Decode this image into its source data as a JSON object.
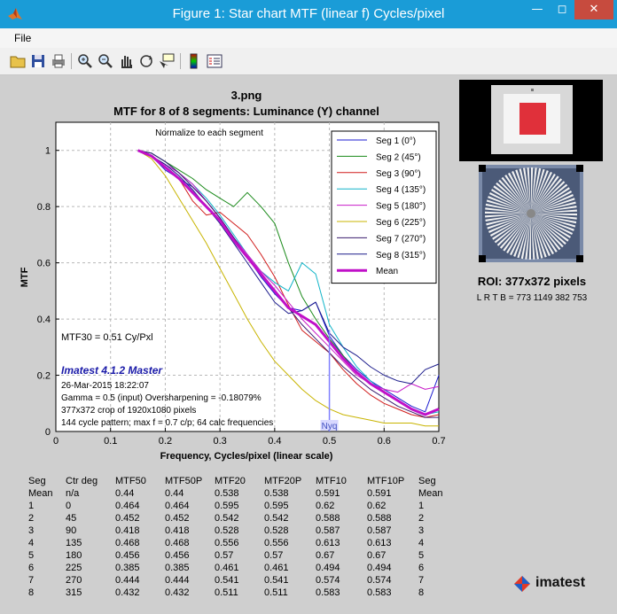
{
  "window": {
    "title": "Figure 1: Star chart  MTF (linear f)  Cycles/pixel"
  },
  "menu": {
    "file": "File"
  },
  "toolbar": {
    "buttons": [
      "open-icon",
      "save-icon",
      "print-icon",
      "zoom-in-icon",
      "zoom-out-icon",
      "pan-hand-icon",
      "rotate-3d-icon",
      "data-cursor-icon",
      "colorbar-icon",
      "legend-icon"
    ]
  },
  "chart_data": {
    "type": "line",
    "title": "3.png",
    "subtitle": "MTF for 8 of 8 segments:  Luminance (Y) channel",
    "xlabel": "Frequency, Cycles/pixel (linear scale)",
    "ylabel": "MTF",
    "xlim": [
      0,
      0.7
    ],
    "ylim": [
      0,
      1.1
    ],
    "xticks": [
      "0",
      "0.1",
      "0.2",
      "0.3",
      "0.4",
      "0.5",
      "0.6",
      "0.7"
    ],
    "yticks": [
      "0",
      "0.2",
      "0.4",
      "0.6",
      "0.8",
      "1"
    ],
    "grid": true,
    "legend_position": "top-right",
    "annotation_top": "Normalize to each segment",
    "nyquist": {
      "x": 0.5,
      "label": "Nyq"
    },
    "mtf30_label": "MTF30 = 0.51 Cy/Pxl",
    "info": {
      "product": "Imatest 4.1.2 Master",
      "lines": [
        "26-Mar-2015 18:22:07",
        "Gamma = 0.5 (input)  Oversharpening = -0.18079%",
        "377x372 crop of 1920x1080 pixels",
        "144 cycle pattern;  max f = 0.7 c/p;  64 calc frequencies"
      ]
    },
    "series": [
      {
        "name": "Seg 1 (0°)",
        "color": "#1c1cd0",
        "x": [
          0.15,
          0.175,
          0.2,
          0.225,
          0.25,
          0.275,
          0.3,
          0.325,
          0.35,
          0.375,
          0.4,
          0.425,
          0.45,
          0.475,
          0.5,
          0.525,
          0.55,
          0.575,
          0.6,
          0.625,
          0.65,
          0.675,
          0.7
        ],
        "y": [
          1.0,
          0.98,
          0.93,
          0.9,
          0.87,
          0.82,
          0.76,
          0.69,
          0.62,
          0.55,
          0.49,
          0.44,
          0.43,
          0.46,
          0.34,
          0.27,
          0.22,
          0.18,
          0.15,
          0.12,
          0.09,
          0.07,
          0.2
        ]
      },
      {
        "name": "Seg 2 (45°)",
        "color": "#1a8a1a",
        "x": [
          0.15,
          0.175,
          0.2,
          0.225,
          0.25,
          0.275,
          0.3,
          0.325,
          0.35,
          0.375,
          0.4,
          0.425,
          0.45,
          0.475,
          0.5,
          0.525,
          0.55,
          0.575,
          0.6,
          0.625,
          0.65,
          0.675,
          0.7
        ],
        "y": [
          1.0,
          0.99,
          0.96,
          0.93,
          0.9,
          0.86,
          0.83,
          0.8,
          0.85,
          0.8,
          0.74,
          0.6,
          0.48,
          0.4,
          0.33,
          0.27,
          0.21,
          0.17,
          0.14,
          0.11,
          0.08,
          0.06,
          0.08
        ]
      },
      {
        "name": "Seg 3 (90°)",
        "color": "#d01c1c",
        "x": [
          0.15,
          0.175,
          0.2,
          0.225,
          0.25,
          0.275,
          0.3,
          0.325,
          0.35,
          0.375,
          0.4,
          0.425,
          0.45,
          0.475,
          0.5,
          0.525,
          0.55,
          0.575,
          0.6,
          0.625,
          0.65,
          0.675,
          0.7
        ],
        "y": [
          1.0,
          0.98,
          0.94,
          0.9,
          0.82,
          0.77,
          0.78,
          0.74,
          0.7,
          0.63,
          0.55,
          0.45,
          0.36,
          0.32,
          0.28,
          0.22,
          0.17,
          0.13,
          0.1,
          0.08,
          0.06,
          0.05,
          0.06
        ]
      },
      {
        "name": "Seg 4 (135°)",
        "color": "#10b4c8",
        "x": [
          0.15,
          0.175,
          0.2,
          0.225,
          0.25,
          0.275,
          0.3,
          0.325,
          0.35,
          0.375,
          0.4,
          0.425,
          0.45,
          0.475,
          0.5,
          0.525,
          0.55,
          0.575,
          0.6,
          0.625,
          0.65,
          0.675,
          0.7
        ],
        "y": [
          1.0,
          0.99,
          0.96,
          0.92,
          0.88,
          0.83,
          0.77,
          0.7,
          0.63,
          0.57,
          0.53,
          0.5,
          0.6,
          0.56,
          0.38,
          0.3,
          0.23,
          0.18,
          0.14,
          0.11,
          0.08,
          0.06,
          0.07
        ]
      },
      {
        "name": "Seg 5 (180°)",
        "color": "#c81cc8",
        "x": [
          0.15,
          0.175,
          0.2,
          0.225,
          0.25,
          0.275,
          0.3,
          0.325,
          0.35,
          0.375,
          0.4,
          0.425,
          0.45,
          0.475,
          0.5,
          0.525,
          0.55,
          0.575,
          0.6,
          0.625,
          0.65,
          0.675,
          0.7
        ],
        "y": [
          1.0,
          0.98,
          0.95,
          0.92,
          0.88,
          0.82,
          0.76,
          0.69,
          0.63,
          0.57,
          0.52,
          0.46,
          0.4,
          0.35,
          0.3,
          0.25,
          0.2,
          0.17,
          0.15,
          0.14,
          0.17,
          0.15,
          0.16
        ]
      },
      {
        "name": "Seg 6 (225°)",
        "color": "#c8b400",
        "x": [
          0.15,
          0.175,
          0.2,
          0.225,
          0.25,
          0.275,
          0.3,
          0.325,
          0.35,
          0.375,
          0.4,
          0.425,
          0.45,
          0.475,
          0.5,
          0.525,
          0.55,
          0.575,
          0.6,
          0.625,
          0.65,
          0.675,
          0.7
        ],
        "y": [
          1.0,
          0.97,
          0.91,
          0.83,
          0.75,
          0.67,
          0.58,
          0.49,
          0.4,
          0.32,
          0.25,
          0.2,
          0.15,
          0.11,
          0.08,
          0.06,
          0.05,
          0.04,
          0.03,
          0.03,
          0.03,
          0.02,
          0.02
        ]
      },
      {
        "name": "Seg 7 (270°)",
        "color": "#3a1c6e",
        "x": [
          0.15,
          0.175,
          0.2,
          0.225,
          0.25,
          0.275,
          0.3,
          0.325,
          0.35,
          0.375,
          0.4,
          0.425,
          0.45,
          0.475,
          0.5,
          0.525,
          0.55,
          0.575,
          0.6,
          0.625,
          0.65,
          0.675,
          0.7
        ],
        "y": [
          1.0,
          0.99,
          0.96,
          0.92,
          0.87,
          0.82,
          0.76,
          0.69,
          0.62,
          0.56,
          0.5,
          0.44,
          0.38,
          0.33,
          0.28,
          0.23,
          0.19,
          0.15,
          0.12,
          0.09,
          0.07,
          0.05,
          0.05
        ]
      },
      {
        "name": "Seg 8 (315°)",
        "color": "#1c1c8c",
        "x": [
          0.15,
          0.175,
          0.2,
          0.225,
          0.25,
          0.275,
          0.3,
          0.325,
          0.35,
          0.375,
          0.4,
          0.425,
          0.45,
          0.475,
          0.5,
          0.525,
          0.55,
          0.575,
          0.6,
          0.625,
          0.65,
          0.675,
          0.7
        ],
        "y": [
          1.0,
          0.98,
          0.95,
          0.91,
          0.86,
          0.8,
          0.74,
          0.67,
          0.6,
          0.53,
          0.46,
          0.42,
          0.43,
          0.46,
          0.35,
          0.3,
          0.27,
          0.23,
          0.2,
          0.18,
          0.17,
          0.22,
          0.24
        ]
      },
      {
        "name": "Mean",
        "color": "#c010c8",
        "width": 3,
        "x": [
          0.15,
          0.175,
          0.2,
          0.225,
          0.25,
          0.275,
          0.3,
          0.325,
          0.35,
          0.375,
          0.4,
          0.425,
          0.45,
          0.475,
          0.5,
          0.525,
          0.55,
          0.575,
          0.6,
          0.625,
          0.65,
          0.675,
          0.7
        ],
        "y": [
          1.0,
          0.98,
          0.94,
          0.9,
          0.85,
          0.8,
          0.75,
          0.68,
          0.62,
          0.56,
          0.5,
          0.44,
          0.41,
          0.38,
          0.32,
          0.26,
          0.21,
          0.17,
          0.14,
          0.11,
          0.08,
          0.06,
          0.08
        ]
      }
    ]
  },
  "roi": {
    "title": "ROI:  377x372 pixels",
    "lrtb": "L R  T B = 773 1149  382 753"
  },
  "stats": {
    "header": [
      "Seg",
      "Ctr deg",
      "MTF50",
      "MTF50P",
      "MTF20",
      "MTF20P",
      "MTF10",
      "MTF10P",
      "Seg"
    ],
    "rows": [
      [
        "Mean",
        "n/a",
        "0.44",
        "0.44",
        "0.538",
        "0.538",
        "0.591",
        "0.591",
        "Mean"
      ],
      [
        "1",
        "0",
        "0.464",
        "0.464",
        "0.595",
        "0.595",
        "0.62",
        "0.62",
        "1"
      ],
      [
        "2",
        "45",
        "0.452",
        "0.452",
        "0.542",
        "0.542",
        "0.588",
        "0.588",
        "2"
      ],
      [
        "3",
        "90",
        "0.418",
        "0.418",
        "0.528",
        "0.528",
        "0.587",
        "0.587",
        "3"
      ],
      [
        "4",
        "135",
        "0.468",
        "0.468",
        "0.556",
        "0.556",
        "0.613",
        "0.613",
        "4"
      ],
      [
        "5",
        "180",
        "0.456",
        "0.456",
        "0.57",
        "0.57",
        "0.67",
        "0.67",
        "5"
      ],
      [
        "6",
        "225",
        "0.385",
        "0.385",
        "0.461",
        "0.461",
        "0.494",
        "0.494",
        "6"
      ],
      [
        "7",
        "270",
        "0.444",
        "0.444",
        "0.541",
        "0.541",
        "0.574",
        "0.574",
        "7"
      ],
      [
        "8",
        "315",
        "0.432",
        "0.432",
        "0.511",
        "0.511",
        "0.583",
        "0.583",
        "8"
      ]
    ]
  },
  "logo": {
    "text": "imatest"
  }
}
